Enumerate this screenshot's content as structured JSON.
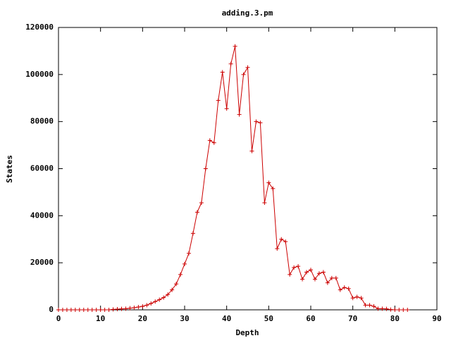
{
  "chart_data": {
    "type": "line",
    "title": "adding.3.pm",
    "xlabel": "Depth",
    "ylabel": "States",
    "x": [
      0,
      1,
      2,
      3,
      4,
      5,
      6,
      7,
      8,
      9,
      10,
      11,
      12,
      13,
      14,
      15,
      16,
      17,
      18,
      19,
      20,
      21,
      22,
      23,
      24,
      25,
      26,
      27,
      28,
      29,
      30,
      31,
      32,
      33,
      34,
      35,
      36,
      37,
      38,
      39,
      40,
      41,
      42,
      43,
      44,
      45,
      46,
      47,
      48,
      49,
      50,
      51,
      52,
      53,
      54,
      55,
      56,
      57,
      58,
      59,
      60,
      61,
      62,
      63,
      64,
      65,
      66,
      67,
      68,
      69,
      70,
      71,
      72,
      73,
      74,
      75,
      76,
      77,
      78,
      79,
      80,
      81,
      82,
      83
    ],
    "values": [
      0,
      0,
      0,
      0,
      0,
      0,
      0,
      0,
      0,
      0,
      0,
      0,
      0,
      200,
      300,
      400,
      500,
      700,
      900,
      1200,
      1500,
      2000,
      2700,
      3500,
      4300,
      5200,
      6500,
      8500,
      11000,
      15000,
      19500,
      24000,
      32500,
      41500,
      45500,
      60000,
      72000,
      71000,
      89000,
      101000,
      85500,
      104500,
      112000,
      83000,
      100000,
      103000,
      67500,
      80000,
      79500,
      45500,
      54000,
      51500,
      26000,
      30000,
      29000,
      15000,
      18000,
      18500,
      13000,
      16000,
      17000,
      13000,
      15500,
      16000,
      11500,
      13500,
      13500,
      8500,
      9500,
      9000,
      5000,
      5500,
      5000,
      2000,
      2000,
      1500,
      500,
      500,
      400,
      100,
      0,
      0,
      0,
      0
    ],
    "color": "#cc0000",
    "xlim": [
      0,
      90
    ],
    "xticks": [
      0,
      10,
      20,
      30,
      40,
      50,
      60,
      70,
      80,
      90
    ],
    "ylim": [
      0,
      120000
    ],
    "yticks": [
      0,
      20000,
      40000,
      60000,
      80000,
      100000,
      120000
    ]
  }
}
